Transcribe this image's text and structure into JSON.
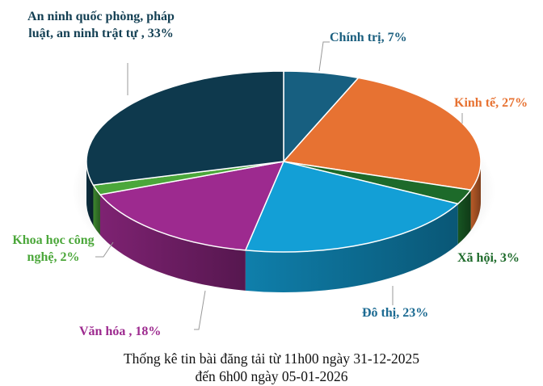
{
  "chart_data": {
    "type": "pie",
    "style": "3d",
    "start": "top, clockwise",
    "title_lines": [
      "Thống kê tin bài đăng tải từ 11h00 ngày 31-12-2025",
      "đến 6h00 ngày 05-01-2026"
    ],
    "slices": [
      {
        "name": "Chính trị",
        "value": 7,
        "label": "Chính trị, 7%",
        "color": "#175f80"
      },
      {
        "name": "Kinh tế",
        "value": 27,
        "label": "Kinh tế, 27%",
        "color": "#e77232"
      },
      {
        "name": "Xã hội",
        "value": 3,
        "label": "Xã hội, 3%",
        "color": "#1d6a2a"
      },
      {
        "name": "Đô thị",
        "value": 23,
        "label": "Đô thị, 23%",
        "color": "#139fd6"
      },
      {
        "name": "Văn hóa",
        "value": 18,
        "label": "Văn hóa , 18%",
        "color": "#9d2a8f"
      },
      {
        "name": "Khoa học công nghệ",
        "value": 2,
        "label": "Khoa học công nghệ, 2%",
        "color": "#4ba73a"
      },
      {
        "name": "An ninh quốc phòng, pháp luật, an ninh trật tự",
        "value": 33,
        "label": "An ninh quốc phòng, pháp luật, an ninh trật tự , 33%",
        "color": "#0e394d"
      }
    ],
    "label_colors": [
      "#1b5f7f",
      "#e77232",
      "#1d6a2a",
      "#1b6a92",
      "#9d2a8f",
      "#4ba73a",
      "#133f53"
    ]
  }
}
